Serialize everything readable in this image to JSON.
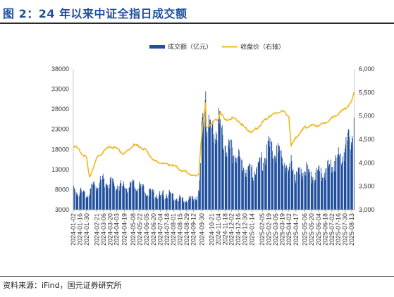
{
  "figure": {
    "title": "图 2：24 年以来中证全指日成交额",
    "source": "资料来源：iFind，国元证券研究所"
  },
  "chart_data": {
    "type": "bar",
    "title": "图 2：24 年以来中证全指日成交额",
    "legend_position": "top-center",
    "grid": false,
    "colors": {
      "bar": "#1f4e9c",
      "line": "#f0b81e"
    },
    "series": [
      {
        "name": "成交额（亿元）",
        "type": "bar",
        "axis": "left"
      },
      {
        "name": "收盘价（右轴）",
        "type": "line",
        "axis": "right"
      }
    ],
    "left_axis": {
      "ylim": [
        3000,
        38000
      ],
      "ticks": [
        "3000",
        "8000",
        "13000",
        "18000",
        "23000",
        "28000",
        "33000",
        "38000"
      ]
    },
    "right_axis": {
      "ylim": [
        3000,
        6000
      ],
      "ticks": [
        "3,000",
        "3,500",
        "4,000",
        "4,500",
        "5,000",
        "5,500",
        "6,000"
      ]
    },
    "x_ticks": [
      "2024-01-02",
      "2024-01-16",
      "2024-01-30",
      "2024-02-21",
      "2024-03-06",
      "2024-03-20",
      "2024-04-03",
      "2024-04-19",
      "2024-05-08",
      "2024-05-22",
      "2024-06-05",
      "2024-06-20",
      "2024-07-04",
      "2024-07-18",
      "2024-08-01",
      "2024-08-15",
      "2024-08-29",
      "2024-09-12",
      "2024-09-30",
      "2024-10-21",
      "2024-11-04",
      "2024-11-18",
      "2024-12-02",
      "2024-12-16",
      "2024-12-30",
      "2025-01-14",
      "2025-02-05",
      "2025-02-19",
      "2025-03-05",
      "2025-03-19",
      "2025-04-02",
      "2025-04-17",
      "2025-05-06",
      "2025-05-20",
      "2025-06-04",
      "2025-06-18",
      "2025-07-02",
      "2025-07-16",
      "2025-07-30",
      "2025-08-13"
    ],
    "turnover_keypoints": [
      [
        "2024-01-02",
        7800
      ],
      [
        "2024-01-30",
        7000
      ],
      [
        "2024-02-21",
        9500
      ],
      [
        "2024-03-06",
        10500
      ],
      [
        "2024-03-20",
        9800
      ],
      [
        "2024-04-03",
        9200
      ],
      [
        "2024-04-19",
        8500
      ],
      [
        "2024-05-08",
        9000
      ],
      [
        "2024-05-22",
        8500
      ],
      [
        "2024-06-05",
        7500
      ],
      [
        "2024-06-20",
        7000
      ],
      [
        "2024-07-04",
        6500
      ],
      [
        "2024-07-18",
        7000
      ],
      [
        "2024-08-01",
        6300
      ],
      [
        "2024-08-15",
        5800
      ],
      [
        "2024-08-29",
        5800
      ],
      [
        "2024-09-12",
        5500
      ],
      [
        "2024-09-24",
        7000
      ],
      [
        "2024-09-27",
        14000
      ],
      [
        "2024-09-30",
        24000
      ],
      [
        "2024-10-08",
        33500
      ],
      [
        "2024-10-09",
        25000
      ],
      [
        "2024-10-21",
        21000
      ],
      [
        "2024-11-04",
        25000
      ],
      [
        "2024-11-18",
        20000
      ],
      [
        "2024-12-02",
        17500
      ],
      [
        "2024-12-16",
        15500
      ],
      [
        "2024-12-30",
        13500
      ],
      [
        "2025-01-14",
        12000
      ],
      [
        "2025-02-05",
        15000
      ],
      [
        "2025-02-19",
        18500
      ],
      [
        "2025-03-05",
        17500
      ],
      [
        "2025-03-19",
        16000
      ],
      [
        "2025-04-02",
        12500
      ],
      [
        "2025-04-07",
        16000
      ],
      [
        "2025-04-17",
        11000
      ],
      [
        "2025-05-06",
        13000
      ],
      [
        "2025-05-20",
        11500
      ],
      [
        "2025-06-04",
        12000
      ],
      [
        "2025-06-18",
        12500
      ],
      [
        "2025-07-02",
        14500
      ],
      [
        "2025-07-16",
        16000
      ],
      [
        "2025-07-30",
        18500
      ],
      [
        "2025-08-13",
        22000
      ],
      [
        "2025-08-18",
        27000
      ]
    ],
    "close_keypoints": [
      [
        "2024-01-02",
        4380
      ],
      [
        "2024-01-16",
        4250
      ],
      [
        "2024-01-30",
        4100
      ],
      [
        "2024-02-05",
        3680
      ],
      [
        "2024-02-21",
        4100
      ],
      [
        "2024-03-06",
        4250
      ],
      [
        "2024-03-20",
        4350
      ],
      [
        "2024-04-03",
        4300
      ],
      [
        "2024-04-19",
        4180
      ],
      [
        "2024-05-08",
        4380
      ],
      [
        "2024-05-22",
        4350
      ],
      [
        "2024-06-05",
        4250
      ],
      [
        "2024-06-20",
        4050
      ],
      [
        "2024-07-04",
        4000
      ],
      [
        "2024-07-18",
        3970
      ],
      [
        "2024-08-01",
        3950
      ],
      [
        "2024-08-15",
        3850
      ],
      [
        "2024-08-29",
        3800
      ],
      [
        "2024-09-12",
        3730
      ],
      [
        "2024-09-18",
        3700
      ],
      [
        "2024-09-24",
        3800
      ],
      [
        "2024-09-27",
        4300
      ],
      [
        "2024-09-30",
        4650
      ],
      [
        "2024-10-08",
        5250
      ],
      [
        "2024-10-09",
        4750
      ],
      [
        "2024-10-21",
        4850
      ],
      [
        "2024-11-04",
        4950
      ],
      [
        "2024-11-08",
        5100
      ],
      [
        "2024-11-18",
        4900
      ],
      [
        "2024-12-02",
        4950
      ],
      [
        "2024-12-16",
        4900
      ],
      [
        "2024-12-30",
        4750
      ],
      [
        "2025-01-14",
        4650
      ],
      [
        "2025-02-05",
        4850
      ],
      [
        "2025-02-19",
        5000
      ],
      [
        "2025-03-05",
        5050
      ],
      [
        "2025-03-19",
        5100
      ],
      [
        "2025-04-02",
        5000
      ],
      [
        "2025-04-07",
        4350
      ],
      [
        "2025-04-17",
        4550
      ],
      [
        "2025-05-06",
        4750
      ],
      [
        "2025-05-20",
        4800
      ],
      [
        "2025-06-04",
        4800
      ],
      [
        "2025-06-18",
        4850
      ],
      [
        "2025-07-02",
        4950
      ],
      [
        "2025-07-16",
        5050
      ],
      [
        "2025-07-30",
        5150
      ],
      [
        "2025-08-13",
        5300
      ],
      [
        "2025-08-18",
        5500
      ]
    ]
  }
}
